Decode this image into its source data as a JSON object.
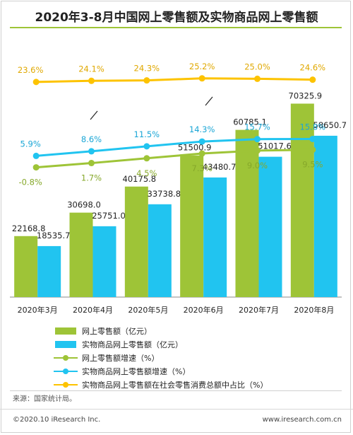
{
  "title": "2020年3-8月中国网上零售额及实物商品网上零售额",
  "colors": {
    "bar_total": "#9ec437",
    "bar_physical": "#21c4f0",
    "line_total_growth": "#9ec437",
    "line_physical_growth": "#21c4f0",
    "line_share": "#fdc300",
    "accent_rule": "#9ec437"
  },
  "chart_data": {
    "type": "bar",
    "categories": [
      "2020年3月",
      "2020年4月",
      "2020年5月",
      "2020年6月",
      "2020年7月",
      "2020年8月"
    ],
    "series": [
      {
        "name": "网上零售额（亿元）",
        "kind": "bar",
        "values": [
          "22168.8",
          "30698.0",
          "40175.8",
          "51500.9",
          "60785.1",
          "70325.9"
        ]
      },
      {
        "name": "实物商品网上零售额（亿元）",
        "kind": "bar",
        "values": [
          "18535.7",
          "25751.0",
          "33738.8",
          "43480.7",
          "51017.6",
          "58650.7"
        ]
      },
      {
        "name": "网上零售额增速（%）",
        "kind": "line",
        "values": [
          "-0.8%",
          "1.7%",
          "4.5%",
          "7.3%",
          "9.0%",
          "9.5%"
        ]
      },
      {
        "name": "实物商品网上零售额增速（%）",
        "kind": "line",
        "values": [
          "5.9%",
          "8.6%",
          "11.5%",
          "14.3%",
          "15.7%",
          "15.8%"
        ]
      },
      {
        "name": "实物商品网上零售额在社会零售消费总额中占比（%）",
        "kind": "line",
        "values": [
          "23.6%",
          "24.1%",
          "24.3%",
          "25.2%",
          "25.0%",
          "24.6%"
        ]
      }
    ],
    "bar_ylim": [
      0,
      90000
    ],
    "growth_ylim": [
      -20,
      40
    ],
    "share_ylim": [
      0,
      30
    ],
    "legend_position": "bottom"
  },
  "source": "来源：国家统计局。",
  "copyright": "©2020.10 iResearch Inc.",
  "website": "www.iresearch.com.cn"
}
